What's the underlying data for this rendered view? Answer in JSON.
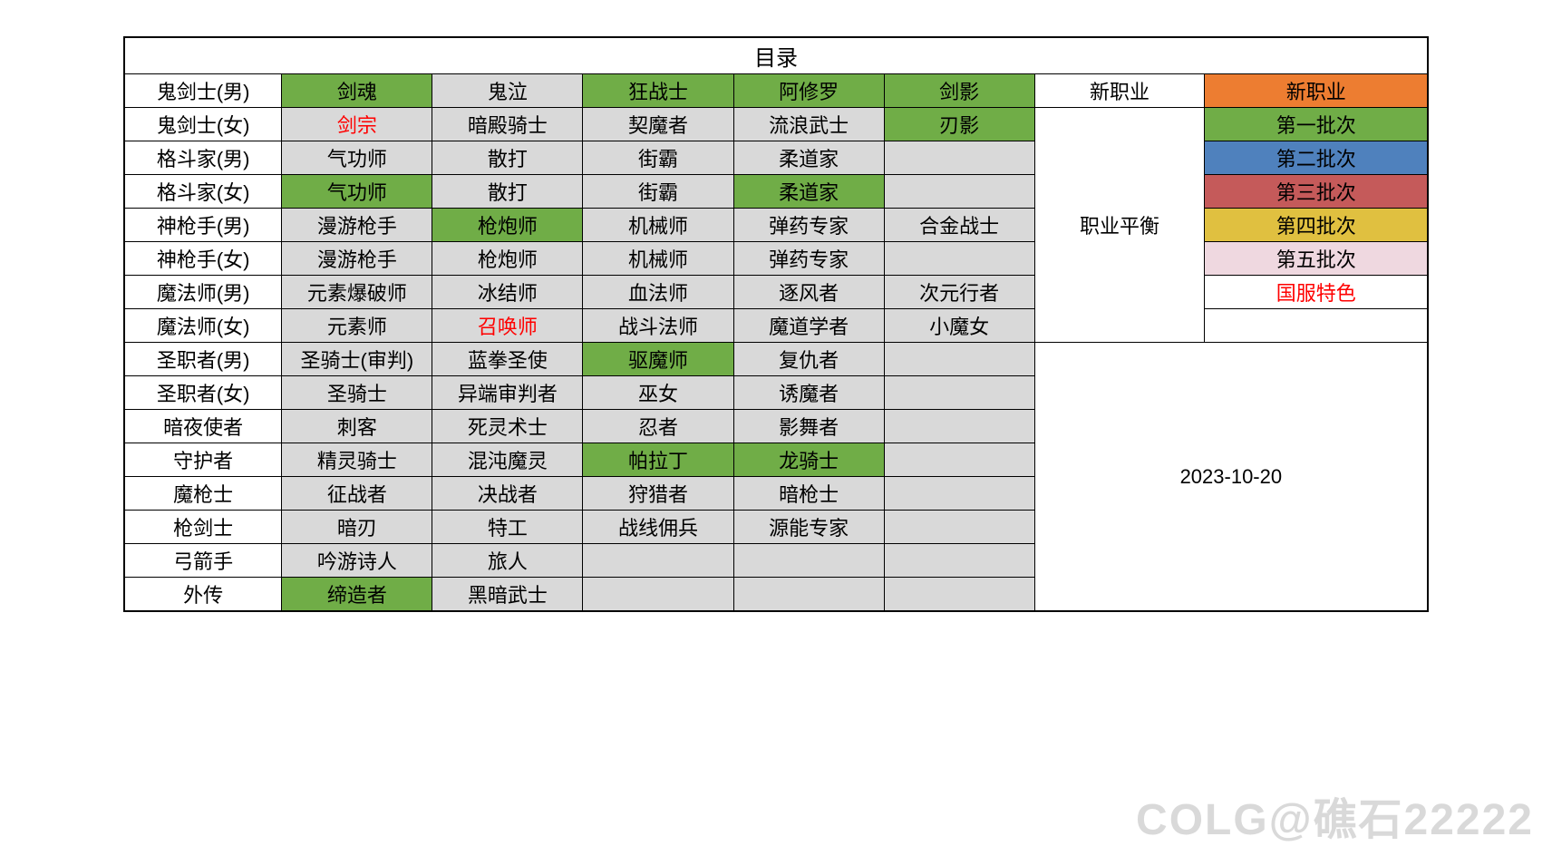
{
  "title": "目录",
  "date": "2023-10-20",
  "watermark": "COLG@礁石22222",
  "colors": {
    "gray": "#d9d9d9",
    "green": "#70ad47",
    "orange": "#ed7d31",
    "blue": "#4f81bd",
    "redbg": "#c55a5a",
    "yellow": "#e0c040",
    "pink": "#efd8e0",
    "red_text": "#ff0000",
    "border": "#000000",
    "background": "#ffffff"
  },
  "legend": {
    "new_class": "新职业",
    "balance": "职业平衡",
    "batch1": "第一批次",
    "batch2": "第二批次",
    "batch3": "第三批次",
    "batch4": "第四批次",
    "batch5": "第五批次",
    "cn_special": "国服特色"
  },
  "rows": [
    {
      "label": "鬼剑士(男)",
      "cells": [
        {
          "text": "剑魂",
          "bg": "green"
        },
        {
          "text": "鬼泣",
          "bg": "gray"
        },
        {
          "text": "狂战士",
          "bg": "green"
        },
        {
          "text": "阿修罗",
          "bg": "green"
        },
        {
          "text": "剑影",
          "bg": "green"
        }
      ],
      "extra_label": "新职业",
      "extra_bg": ""
    },
    {
      "label": "鬼剑士(女)",
      "cells": [
        {
          "text": "剑宗",
          "bg": "gray",
          "red": true
        },
        {
          "text": "暗殿骑士",
          "bg": "gray"
        },
        {
          "text": "契魔者",
          "bg": "gray"
        },
        {
          "text": "流浪武士",
          "bg": "gray"
        },
        {
          "text": "刃影",
          "bg": "green"
        }
      ]
    },
    {
      "label": "格斗家(男)",
      "cells": [
        {
          "text": "气功师",
          "bg": "gray"
        },
        {
          "text": "散打",
          "bg": "gray"
        },
        {
          "text": "街霸",
          "bg": "gray"
        },
        {
          "text": "柔道家",
          "bg": "gray"
        },
        {
          "text": "",
          "bg": "gray"
        }
      ]
    },
    {
      "label": "格斗家(女)",
      "cells": [
        {
          "text": "气功师",
          "bg": "green"
        },
        {
          "text": "散打",
          "bg": "gray"
        },
        {
          "text": "街霸",
          "bg": "gray"
        },
        {
          "text": "柔道家",
          "bg": "green"
        },
        {
          "text": "",
          "bg": "gray"
        }
      ]
    },
    {
      "label": "神枪手(男)",
      "cells": [
        {
          "text": "漫游枪手",
          "bg": "gray"
        },
        {
          "text": "枪炮师",
          "bg": "green"
        },
        {
          "text": "机械师",
          "bg": "gray"
        },
        {
          "text": "弹药专家",
          "bg": "gray"
        },
        {
          "text": "合金战士",
          "bg": "gray"
        }
      ]
    },
    {
      "label": "神枪手(女)",
      "cells": [
        {
          "text": "漫游枪手",
          "bg": "gray"
        },
        {
          "text": "枪炮师",
          "bg": "gray"
        },
        {
          "text": "机械师",
          "bg": "gray"
        },
        {
          "text": "弹药专家",
          "bg": "gray"
        },
        {
          "text": "",
          "bg": "gray"
        }
      ]
    },
    {
      "label": "魔法师(男)",
      "cells": [
        {
          "text": "元素爆破师",
          "bg": "gray"
        },
        {
          "text": "冰结师",
          "bg": "gray"
        },
        {
          "text": "血法师",
          "bg": "gray"
        },
        {
          "text": "逐风者",
          "bg": "gray"
        },
        {
          "text": "次元行者",
          "bg": "gray"
        }
      ]
    },
    {
      "label": "魔法师(女)",
      "cells": [
        {
          "text": "元素师",
          "bg": "gray"
        },
        {
          "text": "召唤师",
          "bg": "gray",
          "red": true
        },
        {
          "text": "战斗法师",
          "bg": "gray"
        },
        {
          "text": "魔道学者",
          "bg": "gray"
        },
        {
          "text": "小魔女",
          "bg": "gray"
        }
      ]
    },
    {
      "label": "圣职者(男)",
      "cells": [
        {
          "text": "圣骑士(审判)",
          "bg": "gray"
        },
        {
          "text": "蓝拳圣使",
          "bg": "gray"
        },
        {
          "text": "驱魔师",
          "bg": "green"
        },
        {
          "text": "复仇者",
          "bg": "gray"
        },
        {
          "text": "",
          "bg": "gray"
        }
      ]
    },
    {
      "label": "圣职者(女)",
      "cells": [
        {
          "text": "圣骑士",
          "bg": "gray"
        },
        {
          "text": "异端审判者",
          "bg": "gray"
        },
        {
          "text": "巫女",
          "bg": "gray"
        },
        {
          "text": "诱魔者",
          "bg": "gray"
        },
        {
          "text": "",
          "bg": "gray"
        }
      ]
    },
    {
      "label": "暗夜使者",
      "cells": [
        {
          "text": "刺客",
          "bg": "gray"
        },
        {
          "text": "死灵术士",
          "bg": "gray"
        },
        {
          "text": "忍者",
          "bg": "gray"
        },
        {
          "text": "影舞者",
          "bg": "gray"
        },
        {
          "text": "",
          "bg": "gray"
        }
      ]
    },
    {
      "label": "守护者",
      "cells": [
        {
          "text": "精灵骑士",
          "bg": "gray"
        },
        {
          "text": "混沌魔灵",
          "bg": "gray"
        },
        {
          "text": "帕拉丁",
          "bg": "green"
        },
        {
          "text": "龙骑士",
          "bg": "green"
        },
        {
          "text": "",
          "bg": "gray"
        }
      ]
    },
    {
      "label": "魔枪士",
      "cells": [
        {
          "text": "征战者",
          "bg": "gray"
        },
        {
          "text": "决战者",
          "bg": "gray"
        },
        {
          "text": "狩猎者",
          "bg": "gray"
        },
        {
          "text": "暗枪士",
          "bg": "gray"
        },
        {
          "text": "",
          "bg": "gray"
        }
      ]
    },
    {
      "label": "枪剑士",
      "cells": [
        {
          "text": "暗刃",
          "bg": "gray"
        },
        {
          "text": "特工",
          "bg": "gray"
        },
        {
          "text": "战线佣兵",
          "bg": "gray"
        },
        {
          "text": "源能专家",
          "bg": "gray"
        },
        {
          "text": "",
          "bg": "gray"
        }
      ]
    },
    {
      "label": "弓箭手",
      "cells": [
        {
          "text": "吟游诗人",
          "bg": "gray"
        },
        {
          "text": "旅人",
          "bg": "gray"
        },
        {
          "text": "",
          "bg": "gray"
        },
        {
          "text": "",
          "bg": "gray"
        },
        {
          "text": "",
          "bg": "gray"
        }
      ]
    },
    {
      "label": "外传",
      "cells": [
        {
          "text": "缔造者",
          "bg": "green"
        },
        {
          "text": "黑暗武士",
          "bg": "gray"
        },
        {
          "text": "",
          "bg": "gray"
        },
        {
          "text": "",
          "bg": "gray"
        },
        {
          "text": "",
          "bg": "gray"
        }
      ]
    }
  ]
}
